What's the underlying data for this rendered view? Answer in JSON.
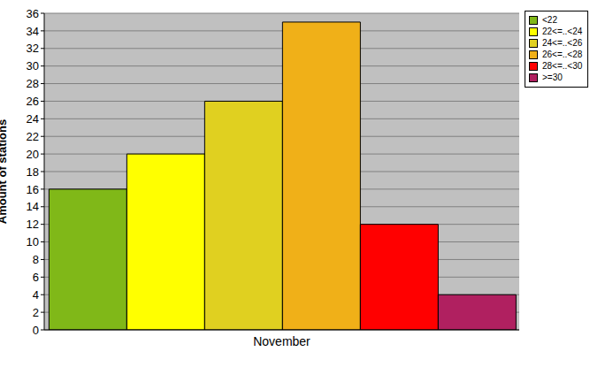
{
  "chart_data": {
    "type": "bar",
    "categories": [
      "November"
    ],
    "series": [
      {
        "name": "<22",
        "color": "#80b818",
        "values": [
          16
        ]
      },
      {
        "name": "22<=..<24",
        "color": "#ffff00",
        "values": [
          20
        ]
      },
      {
        "name": "24<=..<26",
        "color": "#e0d020",
        "values": [
          26
        ]
      },
      {
        "name": "26<=..<28",
        "color": "#f0b018",
        "values": [
          35
        ]
      },
      {
        "name": "28<=..<30",
        "color": "#ff0000",
        "values": [
          12
        ]
      },
      {
        "name": ">=30",
        "color": "#b02060",
        "values": [
          4
        ]
      }
    ],
    "y_label": "Amount of stations",
    "ylim": [
      0,
      36
    ],
    "yticks": [
      0,
      2,
      4,
      6,
      8,
      10,
      12,
      14,
      16,
      18,
      20,
      22,
      24,
      26,
      28,
      30,
      32,
      34,
      36
    ],
    "grid": true,
    "legend": "upper right"
  }
}
